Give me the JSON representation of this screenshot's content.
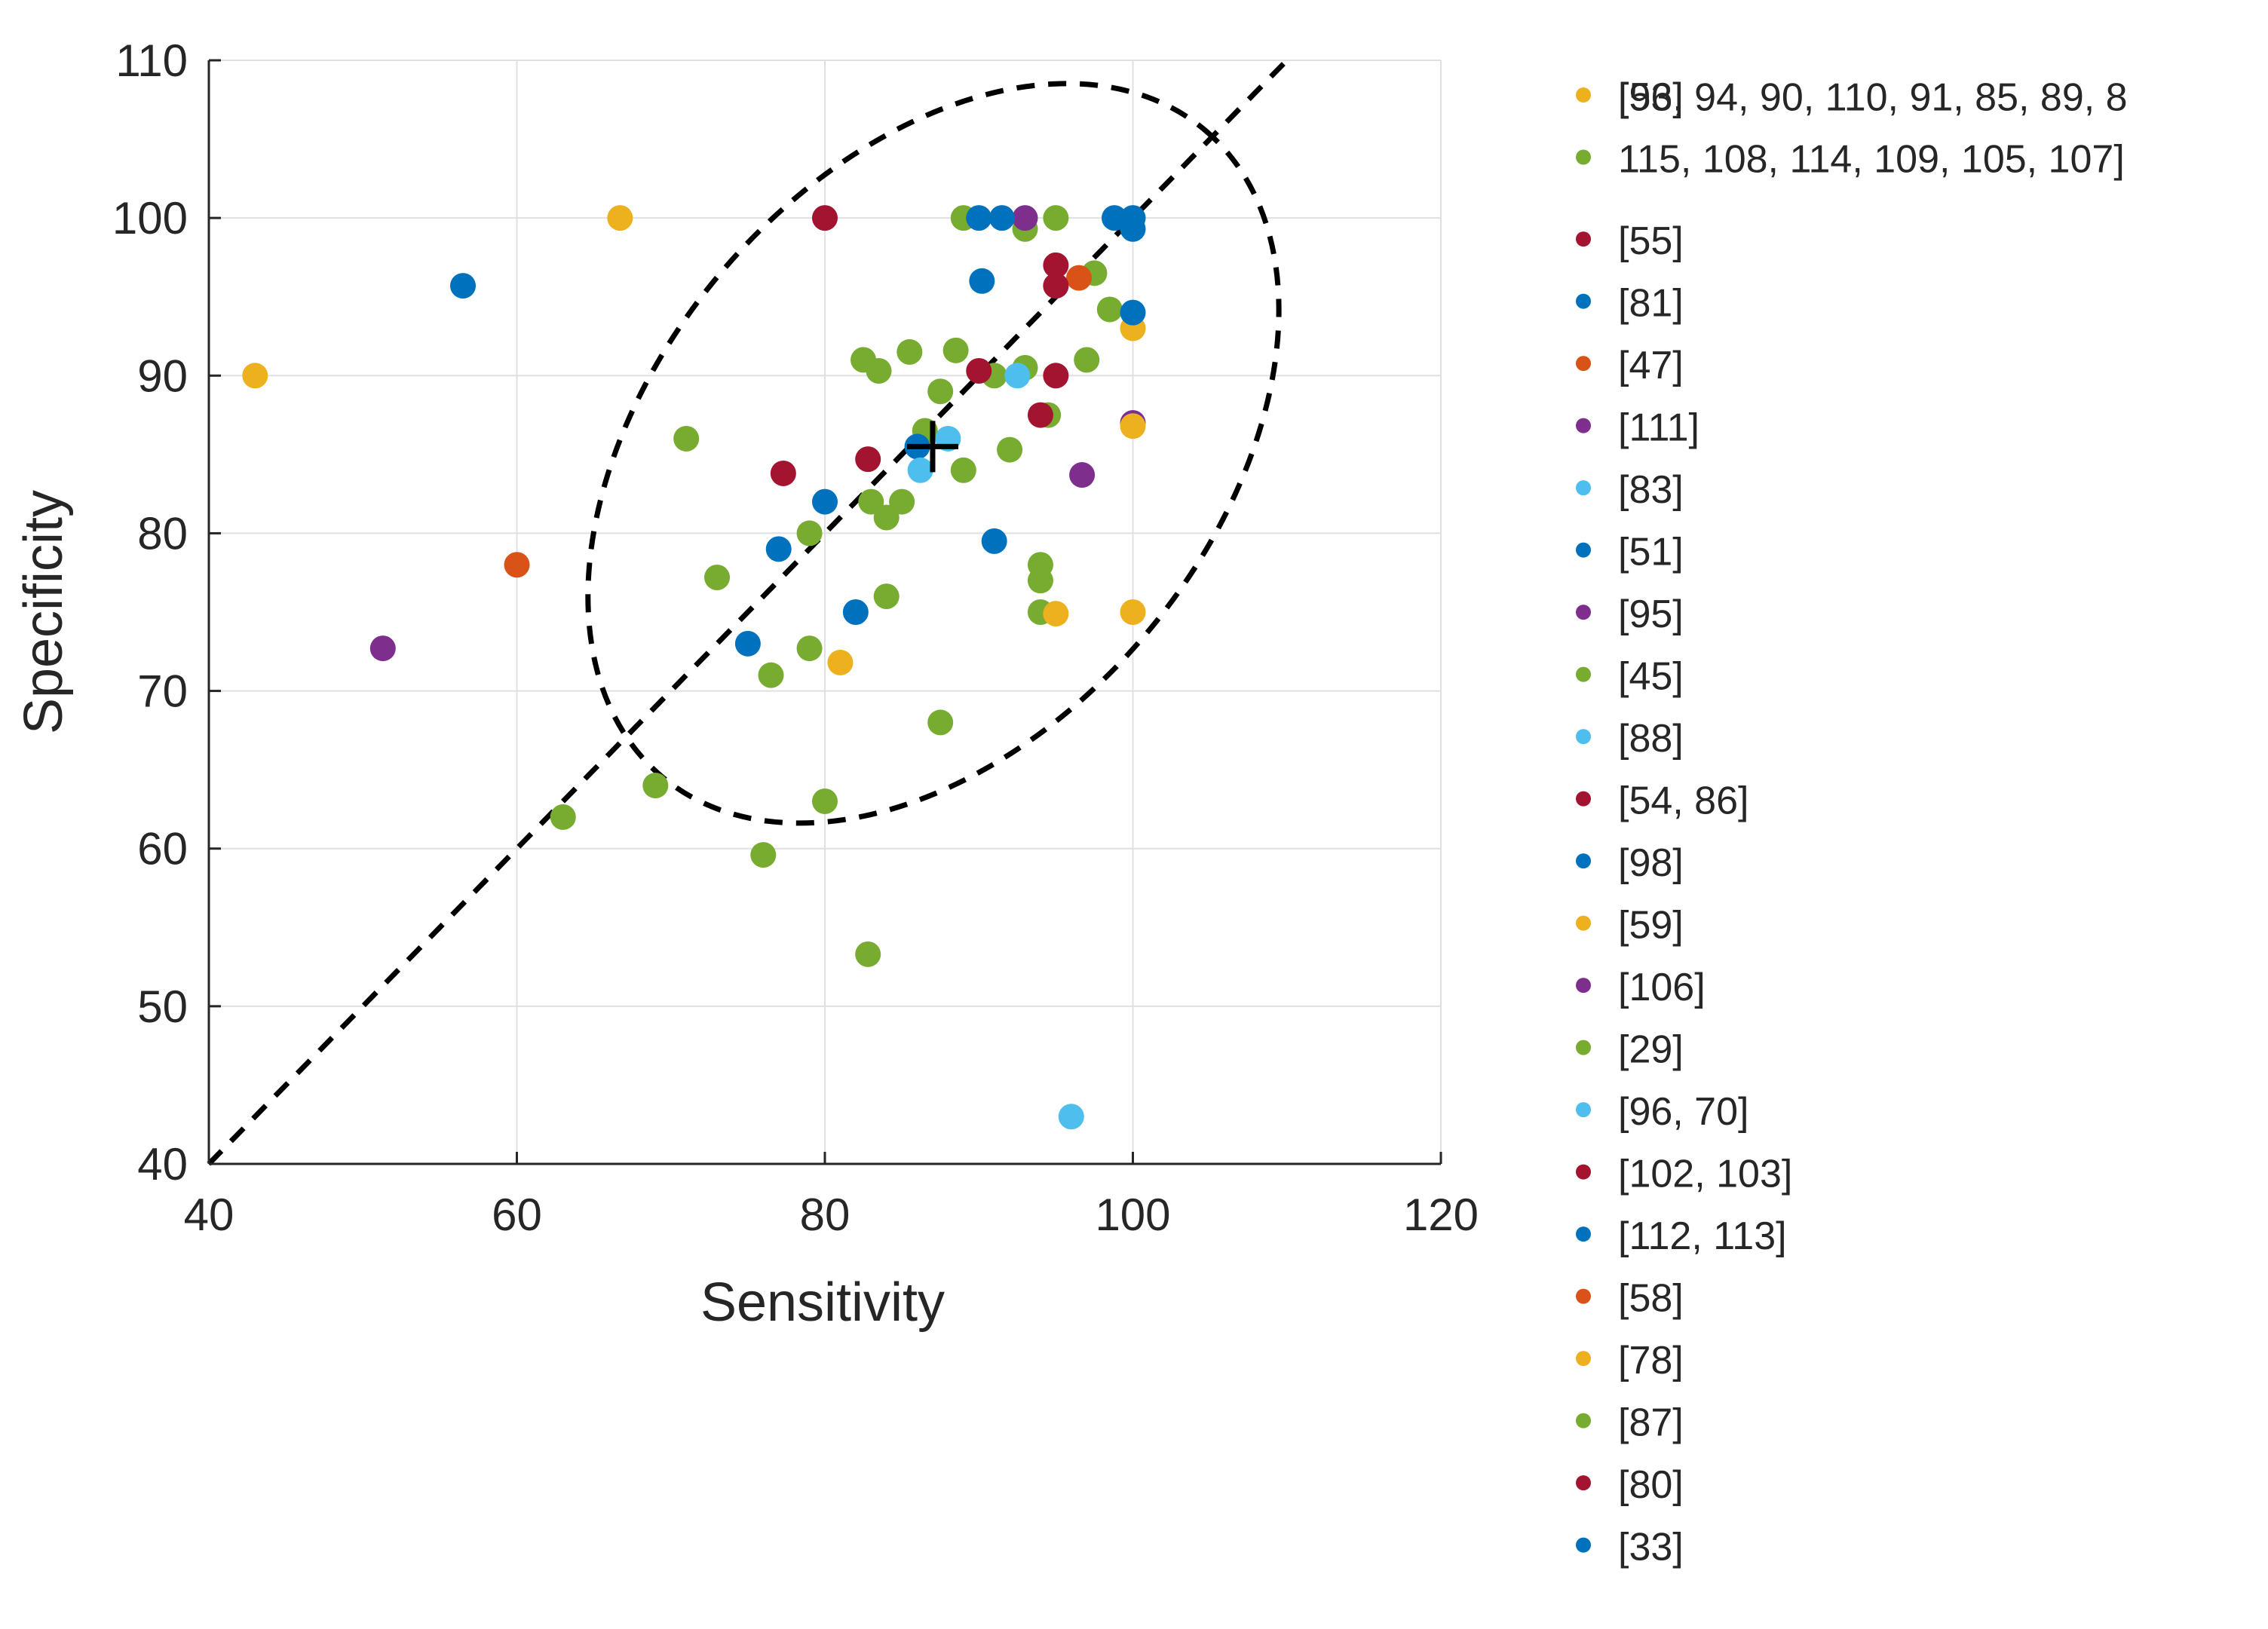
{
  "chart_data": {
    "type": "scatter",
    "title": "",
    "xlabel": "Sensitivity",
    "ylabel": "Specificity",
    "xlim": [
      40,
      120
    ],
    "ylim": [
      40,
      110
    ],
    "xticks": [
      "40",
      "60",
      "80",
      "100",
      "120"
    ],
    "yticks": [
      "40",
      "50",
      "60",
      "70",
      "80",
      "90",
      "100",
      "110"
    ],
    "grid": true,
    "legend_position": "right-outside",
    "colors": {
      "yellow": "#EDB120",
      "green": "#77AC30",
      "red": "#A2142F",
      "blue": "#0072BD",
      "orange": "#D95319",
      "purple": "#7E2F8E",
      "cyan": "#4DBEEE"
    },
    "series": [
      {
        "name": "[56]",
        "color": "yellow",
        "points": [
          [
            43,
            90
          ],
          [
            66.7,
            100
          ]
        ]
      },
      {
        "name": "[93, 94, 90, 110, 91, 85, 89, 8",
        "name_line2": "115, 108, 114, 109, 105, 107]",
        "color": "green",
        "points": [
          [
            63,
            62
          ],
          [
            69,
            64
          ],
          [
            71,
            86
          ],
          [
            73,
            77.2
          ],
          [
            76,
            59.6
          ],
          [
            76.5,
            71
          ],
          [
            79,
            72.7
          ],
          [
            79,
            80
          ],
          [
            80,
            63
          ],
          [
            82.5,
            91
          ],
          [
            83,
            82
          ],
          [
            83.5,
            90.3
          ],
          [
            84,
            81
          ],
          [
            84,
            76
          ],
          [
            85,
            82
          ],
          [
            85.5,
            91.5
          ],
          [
            86.5,
            86.5
          ],
          [
            87.5,
            89
          ],
          [
            88.5,
            91.6
          ],
          [
            89,
            84
          ],
          [
            89,
            100
          ],
          [
            91,
            90
          ],
          [
            92,
            85.3
          ],
          [
            93,
            90.5
          ],
          [
            93,
            99.3
          ],
          [
            94,
            77
          ],
          [
            94,
            78
          ],
          [
            94,
            75
          ],
          [
            94.5,
            87.5
          ],
          [
            95,
            100
          ],
          [
            97,
            91
          ],
          [
            97.5,
            96.5
          ],
          [
            98.5,
            94.2
          ],
          [
            82.8,
            53.3
          ],
          [
            87.5,
            68
          ]
        ]
      },
      {
        "name": "[55]",
        "color": "red",
        "points": [
          [
            80,
            100
          ],
          [
            95,
            97
          ]
        ]
      },
      {
        "name": "[81]",
        "color": "blue",
        "points": [
          [
            56.5,
            95.7
          ],
          [
            75,
            73
          ],
          [
            77,
            79
          ],
          [
            80,
            82
          ],
          [
            82,
            75
          ],
          [
            86,
            85.5
          ]
        ]
      },
      {
        "name": "[47]",
        "color": "orange",
        "points": [
          [
            96.5,
            96.2
          ]
        ]
      },
      {
        "name": "[111]",
        "color": "purple",
        "points": [
          [
            93,
            100
          ],
          [
            100,
            87
          ]
        ]
      },
      {
        "name": "[83]",
        "color": "cyan",
        "points": [
          [
            86.2,
            84
          ],
          [
            88,
            86
          ]
        ]
      },
      {
        "name": "[51]",
        "color": "blue",
        "points": [
          [
            90.2,
            96
          ],
          [
            91,
            79.5
          ]
        ]
      },
      {
        "name": "[95]",
        "color": "purple",
        "points": [
          [
            51.3,
            72.7
          ]
        ]
      },
      {
        "name": "[45]",
        "color": "green",
        "points": []
      },
      {
        "name": "[88]",
        "color": "cyan",
        "points": [
          [
            92.5,
            90
          ]
        ]
      },
      {
        "name": "[54, 86]",
        "color": "red",
        "points": [
          [
            77.3,
            83.8
          ],
          [
            82.8,
            84.7
          ],
          [
            90,
            90.3
          ]
        ]
      },
      {
        "name": "[98]",
        "color": "blue",
        "points": [
          [
            90,
            100
          ],
          [
            91.5,
            100
          ]
        ]
      },
      {
        "name": "[59]",
        "color": "yellow",
        "points": [
          [
            81,
            71.8
          ],
          [
            95,
            74.9
          ],
          [
            100,
            75
          ]
        ]
      },
      {
        "name": "[106]",
        "color": "purple",
        "points": [
          [
            96.7,
            83.7
          ]
        ]
      },
      {
        "name": "[29]",
        "color": "green",
        "points": []
      },
      {
        "name": "[96, 70]",
        "color": "cyan",
        "points": [
          [
            96,
            43
          ]
        ]
      },
      {
        "name": "[102, 103]",
        "color": "red",
        "points": [
          [
            94,
            87.5
          ],
          [
            95,
            90
          ],
          [
            95,
            95.7
          ]
        ]
      },
      {
        "name": "[112, 113]",
        "color": "blue",
        "points": [
          [
            98.8,
            100
          ],
          [
            100,
            99.3
          ],
          [
            100,
            100
          ]
        ]
      },
      {
        "name": "[58]",
        "color": "orange",
        "points": [
          [
            60,
            78
          ]
        ]
      },
      {
        "name": "[78]",
        "color": "yellow",
        "points": [
          [
            100,
            93
          ],
          [
            100,
            86.8
          ]
        ]
      },
      {
        "name": "[87]",
        "color": "green",
        "points": []
      },
      {
        "name": "[80]",
        "color": "red",
        "points": []
      },
      {
        "name": "[33]",
        "color": "blue",
        "points": [
          [
            100,
            94
          ]
        ]
      }
    ],
    "summary_point": {
      "x": 87,
      "y": 85.5,
      "marker": "+"
    },
    "reference_line": {
      "x": [
        40,
        110
      ],
      "y": [
        40,
        110
      ],
      "style": "dashed"
    },
    "confidence_ellipse": {
      "cx": 87,
      "cy": 85.5,
      "style": "dashed"
    }
  }
}
